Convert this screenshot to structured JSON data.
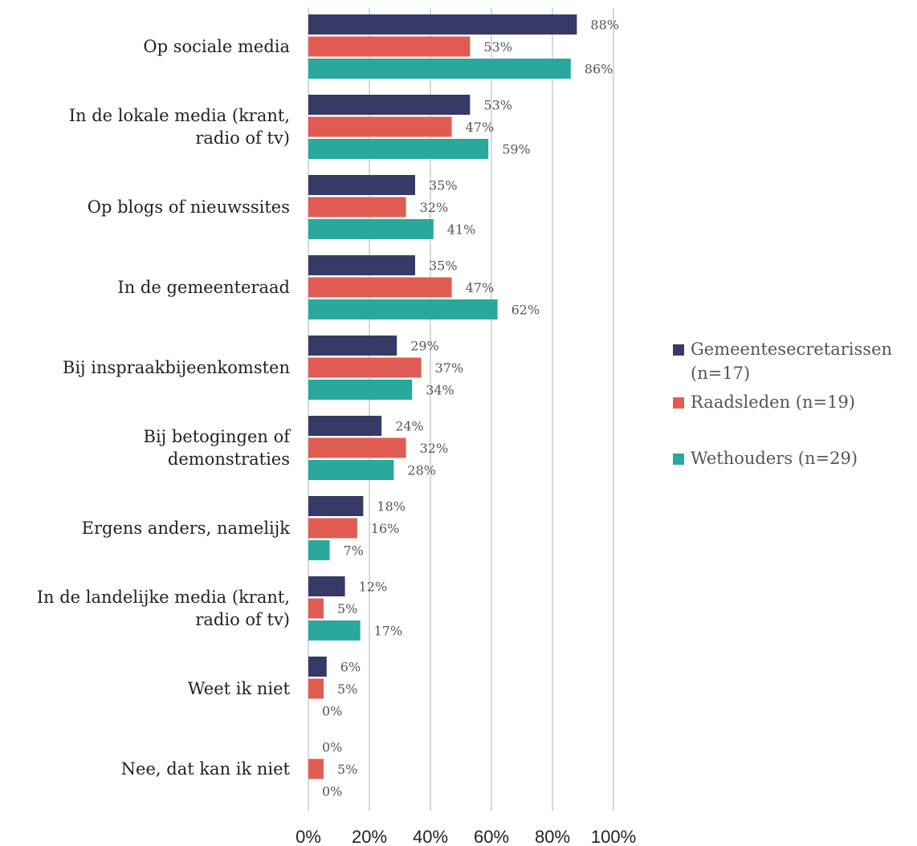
{
  "chart_data": {
    "type": "bar",
    "orientation": "horizontal",
    "categories": [
      "Op sociale media",
      "In de lokale media (krant, radio of tv)",
      "Op blogs of nieuwssites",
      "In de gemeenteraad",
      "Bij inspraakbijeenkomsten",
      "Bij betogingen of demonstraties",
      "Ergens anders, namelijk",
      "In de landelijke media (krant, radio of tv)",
      "Weet ik niet",
      "Nee, dat kan ik niet"
    ],
    "category_lines": [
      [
        "Op sociale media"
      ],
      [
        "In de lokale media (krant,",
        "radio of tv)"
      ],
      [
        "Op blogs of nieuwssites"
      ],
      [
        "In de gemeenteraad"
      ],
      [
        "Bij inspraakbijeenkomsten"
      ],
      [
        "Bij betogingen of",
        "demonstraties"
      ],
      [
        "Ergens anders, namelijk"
      ],
      [
        "In de landelijke media (krant,",
        "radio of tv)"
      ],
      [
        "Weet ik niet"
      ],
      [
        "Nee, dat kan ik niet"
      ]
    ],
    "series": [
      {
        "name": "Gemeentesecretarissen (n=17)",
        "color": "#363a67",
        "values": [
          88,
          53,
          35,
          35,
          29,
          24,
          18,
          12,
          6,
          0
        ]
      },
      {
        "name": "Raadsleden (n=19)",
        "color": "#e05c52",
        "values": [
          53,
          47,
          32,
          47,
          37,
          32,
          16,
          5,
          5,
          5
        ]
      },
      {
        "name": "Wethouders (n=29)",
        "color": "#29a89d",
        "values": [
          86,
          59,
          41,
          62,
          34,
          28,
          7,
          17,
          0,
          0
        ]
      }
    ],
    "value_suffix": "%",
    "xlim": [
      0,
      100
    ],
    "x_ticks": [
      "0%",
      "20%",
      "40%",
      "60%",
      "80%",
      "100%"
    ],
    "x_tick_values": [
      0,
      20,
      40,
      60,
      80,
      100
    ],
    "grid": true,
    "legend_position": "right"
  },
  "legend": {
    "items": [
      {
        "lines": [
          "Gemeentesecretarissen",
          "(n=17)"
        ],
        "color": "#363a67"
      },
      {
        "lines": [
          "Raadsleden (n=19)"
        ],
        "color": "#e05c52"
      },
      {
        "lines": [
          "Wethouders (n=29)"
        ],
        "color": "#29a89d"
      }
    ]
  }
}
